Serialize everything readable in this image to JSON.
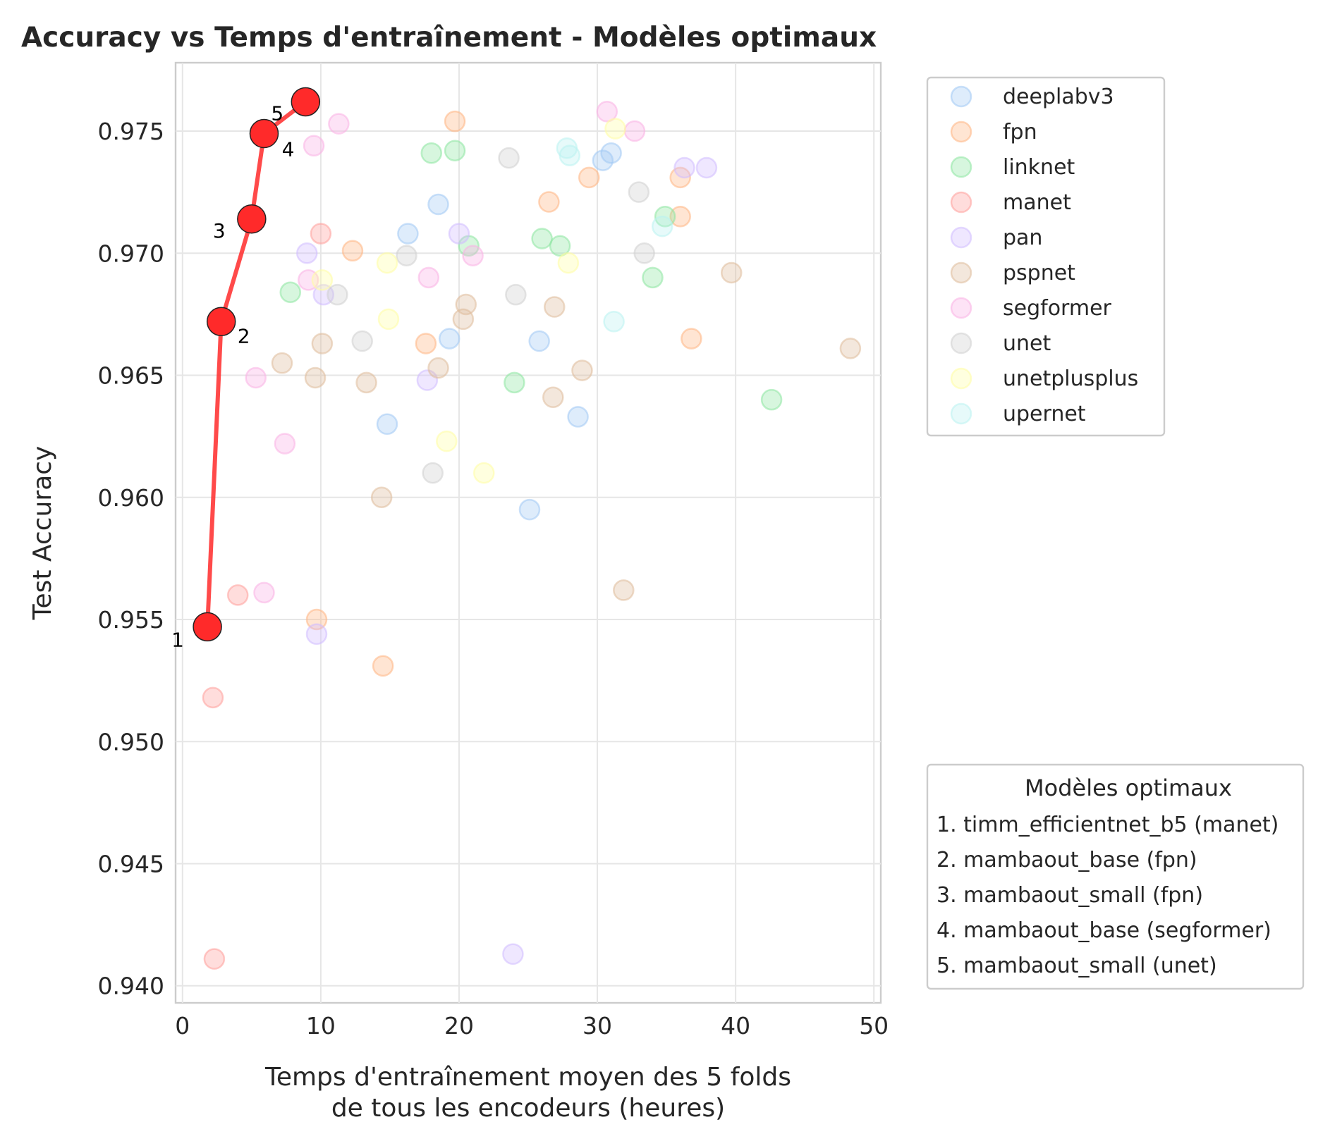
{
  "chart_data": {
    "type": "scatter",
    "title": "Accuracy vs Temps d'entraînement - Modèles optimaux",
    "xlabel_lines": [
      "Temps d'entraînement moyen des 5 folds",
      "de tous les encodeurs (heures)"
    ],
    "ylabel": "Test Accuracy",
    "xlim": [
      -0.5,
      50.5
    ],
    "ylim": [
      0.9393,
      0.9778
    ],
    "x_ticks": [
      0,
      10,
      20,
      30,
      40,
      50
    ],
    "x_tick_labels": [
      "0",
      "10",
      "20",
      "30",
      "40",
      "50"
    ],
    "y_ticks": [
      0.94,
      0.945,
      0.95,
      0.955,
      0.96,
      0.965,
      0.97,
      0.975
    ],
    "y_tick_labels": [
      "0.940",
      "0.945",
      "0.950",
      "0.955",
      "0.960",
      "0.965",
      "0.970",
      "0.975"
    ],
    "grid": true,
    "legend_position": "outside-right-top",
    "series": [
      {
        "name": "deeplabv3",
        "color": "#a1c9f4",
        "points": [
          [
            16.3,
            0.9708
          ],
          [
            18.5,
            0.972
          ],
          [
            19.3,
            0.9665
          ],
          [
            14.8,
            0.963
          ],
          [
            25.1,
            0.9595
          ],
          [
            25.8,
            0.9664
          ],
          [
            28.6,
            0.9633
          ],
          [
            30.4,
            0.9738
          ],
          [
            31.0,
            0.9741
          ]
        ]
      },
      {
        "name": "fpn",
        "color": "#ffb482",
        "points": [
          [
            2.8,
            0.9672
          ],
          [
            5.0,
            0.9714
          ],
          [
            12.3,
            0.9701
          ],
          [
            9.7,
            0.955
          ],
          [
            14.5,
            0.9531
          ],
          [
            17.6,
            0.9663
          ],
          [
            19.7,
            0.9754
          ],
          [
            26.5,
            0.9721
          ],
          [
            29.4,
            0.9731
          ],
          [
            36.0,
            0.9731
          ],
          [
            36.0,
            0.9715
          ],
          [
            36.8,
            0.9665
          ]
        ]
      },
      {
        "name": "linknet",
        "color": "#8de5a1",
        "points": [
          [
            7.8,
            0.9684
          ],
          [
            18.0,
            0.9741
          ],
          [
            19.7,
            0.9742
          ],
          [
            20.7,
            0.9703
          ],
          [
            24.0,
            0.9647
          ],
          [
            26.0,
            0.9706
          ],
          [
            27.3,
            0.9703
          ],
          [
            34.0,
            0.969
          ],
          [
            34.9,
            0.9715
          ],
          [
            42.6,
            0.964
          ]
        ]
      },
      {
        "name": "manet",
        "color": "#ff9f9b",
        "points": [
          [
            1.8,
            0.9547
          ],
          [
            2.2,
            0.9518
          ],
          [
            2.3,
            0.9411
          ],
          [
            4.0,
            0.956
          ],
          [
            10.0,
            0.9708
          ]
        ]
      },
      {
        "name": "pan",
        "color": "#d0bbff",
        "points": [
          [
            9.0,
            0.97
          ],
          [
            9.7,
            0.9544
          ],
          [
            10.2,
            0.9683
          ],
          [
            17.7,
            0.9648
          ],
          [
            20.0,
            0.9708
          ],
          [
            23.9,
            0.9413
          ],
          [
            36.3,
            0.9735
          ],
          [
            37.9,
            0.9735
          ]
        ]
      },
      {
        "name": "pspnet",
        "color": "#debb9b",
        "points": [
          [
            7.2,
            0.9655
          ],
          [
            9.6,
            0.9649
          ],
          [
            10.1,
            0.9663
          ],
          [
            13.3,
            0.9647
          ],
          [
            14.4,
            0.96
          ],
          [
            18.5,
            0.9653
          ],
          [
            20.3,
            0.9673
          ],
          [
            20.5,
            0.9679
          ],
          [
            26.8,
            0.9641
          ],
          [
            26.9,
            0.9678
          ],
          [
            28.9,
            0.9652
          ],
          [
            31.9,
            0.9562
          ],
          [
            39.7,
            0.9692
          ],
          [
            48.3,
            0.9661
          ]
        ]
      },
      {
        "name": "segformer",
        "color": "#fab0e4",
        "points": [
          [
            5.3,
            0.9649
          ],
          [
            5.9,
            0.9561
          ],
          [
            5.9,
            0.9749
          ],
          [
            7.4,
            0.9622
          ],
          [
            9.1,
            0.9689
          ],
          [
            9.5,
            0.9744
          ],
          [
            11.3,
            0.9753
          ],
          [
            17.8,
            0.969
          ],
          [
            21.0,
            0.9699
          ],
          [
            30.7,
            0.9758
          ],
          [
            32.7,
            0.975
          ]
        ]
      },
      {
        "name": "unet",
        "color": "#cfcfcf",
        "points": [
          [
            8.9,
            0.9762
          ],
          [
            11.2,
            0.9683
          ],
          [
            13.0,
            0.9664
          ],
          [
            16.2,
            0.9699
          ],
          [
            18.1,
            0.961
          ],
          [
            23.6,
            0.9739
          ],
          [
            24.1,
            0.9683
          ],
          [
            33.0,
            0.9725
          ],
          [
            33.4,
            0.97
          ]
        ]
      },
      {
        "name": "unetplusplus",
        "color": "#fffea3",
        "points": [
          [
            10.1,
            0.9689
          ],
          [
            14.8,
            0.9696
          ],
          [
            14.9,
            0.9673
          ],
          [
            19.1,
            0.9623
          ],
          [
            21.8,
            0.961
          ],
          [
            27.9,
            0.9696
          ],
          [
            31.3,
            0.9751
          ]
        ]
      },
      {
        "name": "upernet",
        "color": "#b9f2f0",
        "points": [
          [
            27.8,
            0.9743
          ],
          [
            28.0,
            0.974
          ],
          [
            31.2,
            0.9672
          ],
          [
            34.7,
            0.9711
          ]
        ]
      }
    ],
    "optimal": {
      "color": "#ff2a2a",
      "points": [
        [
          1.8,
          0.9547
        ],
        [
          2.8,
          0.9672
        ],
        [
          5.0,
          0.9714
        ],
        [
          5.9,
          0.9749
        ],
        [
          8.9,
          0.9762
        ]
      ],
      "labels": [
        "1",
        "2",
        "3",
        "4",
        "5"
      ]
    },
    "legend2": {
      "title": "Modèles optimaux",
      "items": [
        "1. timm_efficientnet_b5 (manet)",
        "2. mambaout_base (fpn)",
        "3. mambaout_small (fpn)",
        "4. mambaout_base (segformer)",
        "5. mambaout_small (unet)"
      ]
    }
  }
}
